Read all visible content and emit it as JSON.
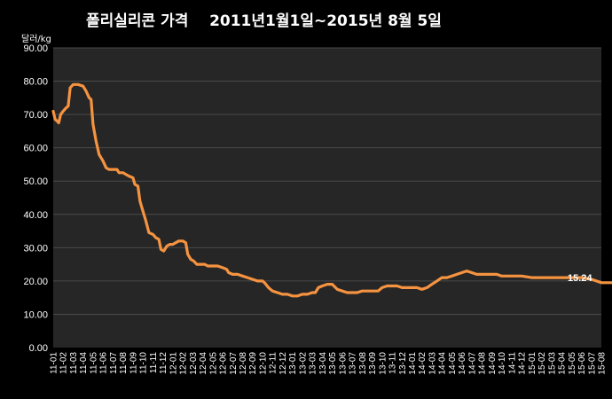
{
  "chart_data": {
    "type": "line",
    "title": "폴리실리콘 가격    2011년1월1일~2015년 8월 5일",
    "ylabel": "달러/kg",
    "xlabel": "",
    "ylim": [
      0,
      90
    ],
    "y_ticks": [
      "0.00",
      "10.00",
      "20.00",
      "30.00",
      "40.00",
      "50.00",
      "60.00",
      "70.00",
      "80.00",
      "90.00"
    ],
    "grid": true,
    "colors": {
      "background": "#000000",
      "plot_area": "#262626",
      "gridline": "#4a4a4a",
      "line": "#f59340"
    },
    "categories": [
      "11-01",
      "11-02",
      "11-03",
      "11-04",
      "11-05",
      "11-06",
      "11-07",
      "11-08",
      "11-09",
      "11-10",
      "11-11",
      "11-12",
      "12-01",
      "12-02",
      "12-03",
      "12-04",
      "12-05",
      "12-06",
      "12-07",
      "12-08",
      "12-09",
      "12-10",
      "12-11",
      "12-12",
      "13-01",
      "13-02",
      "13-03",
      "13-04",
      "13-05",
      "13-06",
      "13-07",
      "13-08",
      "13-09",
      "13-10",
      "13-11",
      "13-12",
      "14-01",
      "14-02",
      "14-03",
      "14-04",
      "14-05",
      "14-06",
      "14-07",
      "14-08",
      "14-09",
      "14-10",
      "14-11",
      "14-12",
      "15-01",
      "15-02",
      "15-03",
      "15-04",
      "15-05",
      "15-06",
      "15-07",
      "15-08"
    ],
    "series": [
      {
        "values": [
          [
            0.0,
            71.0
          ],
          [
            0.2,
            68.5
          ],
          [
            0.4,
            68.0
          ],
          [
            0.55,
            67.5
          ],
          [
            0.75,
            70.0
          ],
          [
            1.0,
            71.0
          ],
          [
            1.3,
            72.0
          ],
          [
            1.5,
            72.5
          ],
          [
            1.7,
            78.0
          ],
          [
            2.0,
            79.0
          ],
          [
            2.5,
            79.0
          ],
          [
            3.0,
            78.5
          ],
          [
            3.3,
            77.0
          ],
          [
            3.6,
            75.0
          ],
          [
            3.8,
            74.5
          ],
          [
            4.0,
            67.0
          ],
          [
            4.3,
            62.0
          ],
          [
            4.6,
            58.0
          ],
          [
            5.0,
            56.0
          ],
          [
            5.3,
            54.0
          ],
          [
            5.6,
            53.5
          ],
          [
            6.0,
            53.5
          ],
          [
            6.4,
            53.5
          ],
          [
            6.6,
            52.5
          ],
          [
            7.0,
            52.5
          ],
          [
            7.3,
            52.0
          ],
          [
            7.6,
            51.5
          ],
          [
            8.0,
            51.0
          ],
          [
            8.2,
            49.0
          ],
          [
            8.5,
            48.5
          ],
          [
            8.7,
            44.0
          ],
          [
            9.0,
            41.0
          ],
          [
            9.3,
            38.0
          ],
          [
            9.6,
            34.5
          ],
          [
            10.0,
            34.0
          ],
          [
            10.3,
            33.0
          ],
          [
            10.6,
            32.5
          ],
          [
            10.8,
            29.5
          ],
          [
            11.1,
            29.0
          ],
          [
            11.4,
            30.5
          ],
          [
            11.7,
            31.0
          ],
          [
            12.0,
            31.0
          ],
          [
            12.3,
            31.5
          ],
          [
            12.6,
            32.0
          ],
          [
            13.0,
            32.0
          ],
          [
            13.3,
            31.5
          ],
          [
            13.5,
            28.0
          ],
          [
            13.8,
            26.5
          ],
          [
            14.1,
            26.0
          ],
          [
            14.4,
            25.0
          ],
          [
            14.8,
            25.0
          ],
          [
            15.2,
            25.0
          ],
          [
            15.5,
            24.5
          ],
          [
            16.0,
            24.5
          ],
          [
            16.5,
            24.5
          ],
          [
            17.0,
            24.0
          ],
          [
            17.4,
            23.5
          ],
          [
            17.6,
            22.5
          ],
          [
            18.0,
            22.0
          ],
          [
            18.5,
            22.0
          ],
          [
            19.0,
            21.5
          ],
          [
            19.5,
            21.0
          ],
          [
            20.0,
            20.5
          ],
          [
            20.5,
            20.0
          ],
          [
            21.0,
            20.0
          ],
          [
            21.2,
            19.5
          ],
          [
            21.6,
            18.0
          ],
          [
            22.0,
            17.0
          ],
          [
            22.5,
            16.5
          ],
          [
            23.0,
            16.0
          ],
          [
            23.5,
            16.0
          ],
          [
            24.0,
            15.5
          ],
          [
            24.5,
            15.5
          ],
          [
            25.0,
            16.0
          ],
          [
            25.5,
            16.0
          ],
          [
            26.0,
            16.5
          ],
          [
            26.3,
            16.5
          ],
          [
            26.6,
            18.0
          ],
          [
            27.0,
            18.5
          ],
          [
            27.5,
            19.0
          ],
          [
            28.0,
            19.0
          ],
          [
            28.5,
            17.5
          ],
          [
            29.0,
            17.0
          ],
          [
            29.5,
            16.5
          ],
          [
            30.0,
            16.5
          ],
          [
            30.5,
            16.5
          ],
          [
            31.0,
            17.0
          ],
          [
            32.0,
            17.0
          ],
          [
            32.6,
            17.0
          ],
          [
            33.0,
            18.0
          ],
          [
            33.5,
            18.5
          ],
          [
            34.0,
            18.5
          ],
          [
            34.5,
            18.5
          ],
          [
            35.0,
            18.0
          ],
          [
            36.0,
            18.0
          ],
          [
            36.5,
            18.0
          ],
          [
            37.0,
            17.5
          ],
          [
            37.5,
            18.0
          ],
          [
            38.0,
            19.0
          ],
          [
            38.5,
            20.0
          ],
          [
            39.0,
            21.0
          ],
          [
            39.5,
            21.0
          ],
          [
            40.0,
            21.5
          ],
          [
            40.5,
            22.0
          ],
          [
            41.0,
            22.5
          ],
          [
            41.5,
            23.0
          ],
          [
            42.0,
            22.5
          ],
          [
            42.5,
            22.0
          ],
          [
            43.5,
            22.0
          ],
          [
            44.5,
            22.0
          ],
          [
            45.0,
            21.5
          ],
          [
            46.0,
            21.5
          ],
          [
            47.0,
            21.5
          ],
          [
            48.0,
            21.0
          ],
          [
            49.0,
            21.0
          ],
          [
            50.0,
            21.0
          ],
          [
            51.0,
            21.0
          ],
          [
            52.0,
            21.0
          ],
          [
            53.0,
            21.0
          ],
          [
            54.0,
            20.5
          ],
          [
            54.5,
            20.0
          ],
          [
            55.0,
            19.5
          ],
          [
            56.0,
            19.5
          ],
          [
            57.0,
            19.5
          ],
          [
            58.0,
            19.5
          ],
          [
            58.5,
            19.0
          ],
          [
            59.0,
            18.5
          ],
          [
            59.5,
            18.0
          ],
          [
            60.0,
            17.5
          ],
          [
            60.5,
            17.0
          ],
          [
            61.0,
            17.0
          ],
          [
            62.0,
            16.5
          ],
          [
            62.5,
            16.0
          ],
          [
            63.0,
            16.0
          ],
          [
            63.5,
            16.0
          ],
          [
            64.0,
            15.5
          ],
          [
            65.0,
            15.5
          ],
          [
            66.0,
            15.5
          ],
          [
            67.0,
            15.24
          ]
        ]
      }
    ],
    "annotations": [
      {
        "text": "15.24"
      }
    ]
  }
}
